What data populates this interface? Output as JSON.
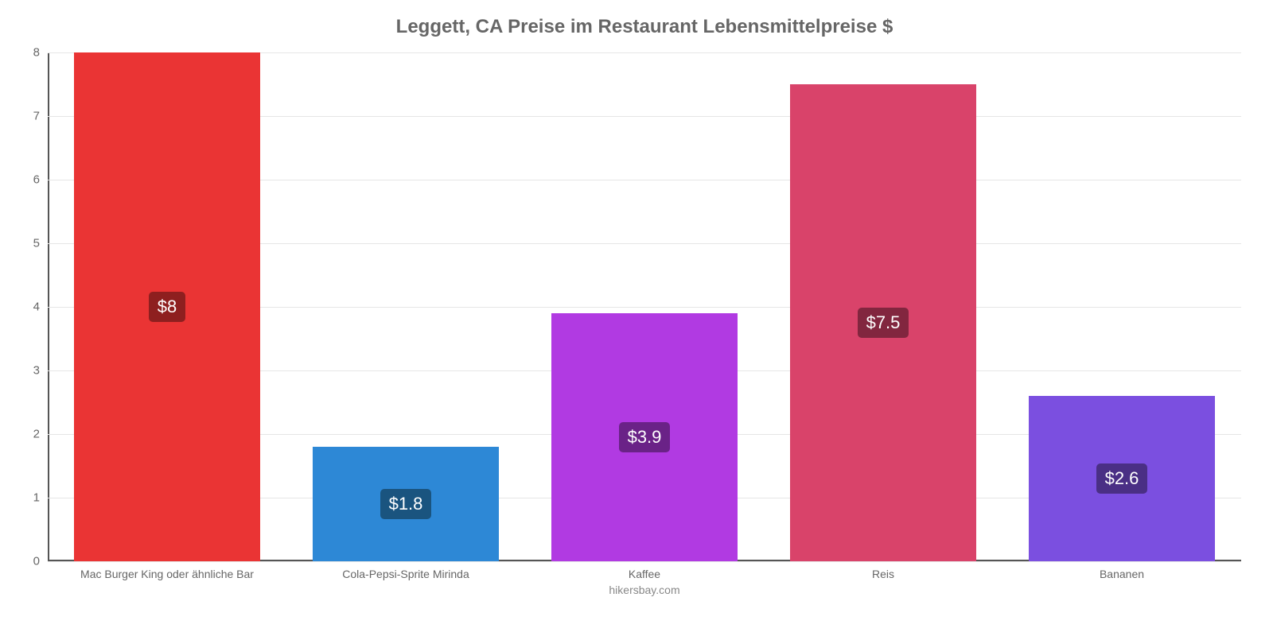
{
  "chart": {
    "type": "bar",
    "title": "Leggett, CA Preise im Restaurant Lebensmittelpreise $",
    "title_fontsize": 24,
    "title_color": "#666666",
    "attribution": "hikersbay.com",
    "background_color": "#ffffff",
    "grid_color": "#e6e6e6",
    "axis_color": "#555555",
    "tick_font_color": "#666666",
    "tick_fontsize": 15,
    "xlabel_fontsize": 14,
    "ylim": [
      0,
      8
    ],
    "ytick_step": 1,
    "yticks": [
      0,
      1,
      2,
      3,
      4,
      5,
      6,
      7,
      8
    ],
    "bar_width": 0.78,
    "label_fontsize": 22,
    "label_text_color": "#ffffff",
    "label_radius": 5,
    "categories": [
      "Mac Burger King oder ähnliche Bar",
      "Cola-Pepsi-Sprite Mirinda",
      "Kaffee",
      "Reis",
      "Bananen"
    ],
    "values": [
      8,
      1.8,
      3.9,
      7.5,
      2.6
    ],
    "value_labels": [
      "$8",
      "$1.8",
      "$3.9",
      "$7.5",
      "$2.6"
    ],
    "bar_colors": [
      "#ea3434",
      "#2d88d6",
      "#b13ae2",
      "#d9436a",
      "#7b4fe0"
    ],
    "badge_bg_colors": [
      "#8e1f1f",
      "#1a547f",
      "#6a2287",
      "#82263f",
      "#4a2f85"
    ]
  }
}
